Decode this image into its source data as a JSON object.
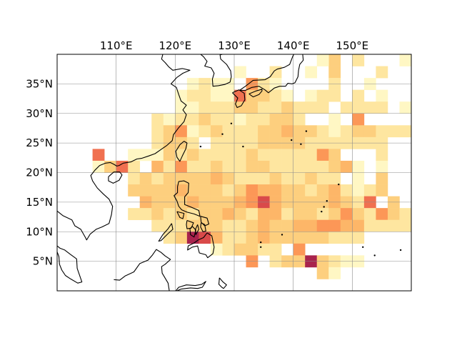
{
  "map": {
    "extent": {
      "lon_min": 100,
      "lon_max": 160,
      "lat_min": 0,
      "lat_max": 40
    },
    "gridline_color": "#8c8c8c",
    "coastline_color": "#000000",
    "colormap": [
      "#fff7c4",
      "#fee6a0",
      "#fdcf7e",
      "#fdb668",
      "#fc9757",
      "#f07050",
      "#d94a4a",
      "#a8234d"
    ],
    "lon_ticks": [
      {
        "value": 110,
        "label": "110°E"
      },
      {
        "value": 120,
        "label": "120°E"
      },
      {
        "value": 130,
        "label": "130°E"
      },
      {
        "value": 140,
        "label": "140°E"
      },
      {
        "value": 150,
        "label": "150°E"
      }
    ],
    "lat_ticks": [
      {
        "value": 35,
        "label": "35°N"
      },
      {
        "value": 30,
        "label": "30°N"
      },
      {
        "value": 25,
        "label": "25°N"
      },
      {
        "value": 20,
        "label": "20°N"
      },
      {
        "value": 15,
        "label": "15°N"
      },
      {
        "value": 10,
        "label": "10°N"
      },
      {
        "value": 5,
        "label": "5°N"
      }
    ],
    "cell_size_deg": 2,
    "cells": [
      [
        150,
        38,
        2
      ],
      [
        146,
        38,
        3
      ],
      [
        144,
        38,
        1
      ],
      [
        158,
        38,
        1
      ],
      [
        130,
        36,
        1
      ],
      [
        136,
        36,
        2
      ],
      [
        142,
        36,
        1
      ],
      [
        146,
        36,
        3
      ],
      [
        154,
        36,
        2
      ],
      [
        122,
        34,
        1
      ],
      [
        124,
        34,
        2
      ],
      [
        126,
        34,
        1
      ],
      [
        128,
        34,
        1
      ],
      [
        132,
        34,
        5
      ],
      [
        134,
        34,
        2
      ],
      [
        136,
        34,
        1
      ],
      [
        146,
        34,
        2
      ],
      [
        152,
        34,
        1
      ],
      [
        120,
        32,
        1
      ],
      [
        122,
        32,
        2
      ],
      [
        124,
        32,
        2
      ],
      [
        126,
        32,
        1
      ],
      [
        128,
        32,
        1
      ],
      [
        130,
        32,
        6
      ],
      [
        132,
        32,
        3
      ],
      [
        134,
        32,
        3
      ],
      [
        136,
        32,
        2
      ],
      [
        138,
        32,
        1
      ],
      [
        142,
        32,
        1
      ],
      [
        144,
        32,
        2
      ],
      [
        146,
        32,
        2
      ],
      [
        150,
        32,
        2
      ],
      [
        154,
        32,
        1
      ],
      [
        120,
        30,
        1
      ],
      [
        122,
        30,
        1
      ],
      [
        124,
        30,
        2
      ],
      [
        126,
        30,
        2
      ],
      [
        128,
        30,
        2
      ],
      [
        130,
        30,
        3
      ],
      [
        132,
        30,
        3
      ],
      [
        134,
        30,
        2
      ],
      [
        136,
        30,
        2
      ],
      [
        138,
        30,
        3
      ],
      [
        140,
        30,
        2
      ],
      [
        142,
        30,
        2
      ],
      [
        144,
        30,
        2
      ],
      [
        148,
        30,
        2
      ],
      [
        150,
        30,
        2
      ],
      [
        152,
        30,
        2
      ],
      [
        154,
        30,
        2
      ],
      [
        158,
        30,
        1
      ],
      [
        116,
        28,
        2
      ],
      [
        118,
        28,
        1
      ],
      [
        120,
        28,
        2
      ],
      [
        122,
        28,
        2
      ],
      [
        124,
        28,
        3
      ],
      [
        126,
        28,
        2
      ],
      [
        128,
        28,
        2
      ],
      [
        130,
        28,
        1
      ],
      [
        132,
        28,
        2
      ],
      [
        134,
        28,
        2
      ],
      [
        136,
        28,
        3
      ],
      [
        138,
        28,
        3
      ],
      [
        140,
        28,
        2
      ],
      [
        146,
        28,
        1
      ],
      [
        150,
        28,
        5
      ],
      [
        116,
        26,
        2
      ],
      [
        118,
        26,
        3
      ],
      [
        120,
        26,
        5
      ],
      [
        122,
        26,
        1
      ],
      [
        124,
        26,
        2
      ],
      [
        126,
        26,
        3
      ],
      [
        128,
        26,
        2
      ],
      [
        130,
        26,
        2
      ],
      [
        132,
        26,
        2
      ],
      [
        134,
        26,
        3
      ],
      [
        136,
        26,
        3
      ],
      [
        138,
        26,
        4
      ],
      [
        140,
        26,
        3
      ],
      [
        142,
        26,
        3
      ],
      [
        144,
        26,
        2
      ],
      [
        146,
        26,
        1
      ],
      [
        148,
        26,
        2
      ],
      [
        150,
        26,
        3
      ],
      [
        152,
        26,
        3
      ],
      [
        154,
        26,
        2
      ],
      [
        156,
        26,
        2
      ],
      [
        158,
        26,
        2
      ],
      [
        116,
        24,
        2
      ],
      [
        118,
        24,
        3
      ],
      [
        120,
        24,
        3
      ],
      [
        122,
        24,
        2
      ],
      [
        126,
        24,
        2
      ],
      [
        128,
        24,
        2
      ],
      [
        130,
        24,
        2
      ],
      [
        132,
        24,
        2
      ],
      [
        134,
        24,
        3
      ],
      [
        136,
        24,
        3
      ],
      [
        138,
        24,
        3
      ],
      [
        140,
        24,
        3
      ],
      [
        142,
        24,
        2
      ],
      [
        144,
        24,
        2
      ],
      [
        146,
        24,
        2
      ],
      [
        148,
        24,
        2
      ],
      [
        150,
        24,
        2
      ],
      [
        152,
        24,
        2
      ],
      [
        154,
        24,
        2
      ],
      [
        106,
        22,
        6
      ],
      [
        112,
        22,
        1
      ],
      [
        114,
        22,
        1
      ],
      [
        116,
        22,
        1
      ],
      [
        118,
        22,
        3
      ],
      [
        120,
        22,
        2
      ],
      [
        122,
        22,
        3
      ],
      [
        124,
        22,
        2
      ],
      [
        126,
        22,
        2
      ],
      [
        128,
        22,
        2
      ],
      [
        130,
        22,
        2
      ],
      [
        132,
        22,
        3
      ],
      [
        134,
        22,
        2
      ],
      [
        136,
        22,
        2
      ],
      [
        138,
        22,
        2
      ],
      [
        140,
        22,
        2
      ],
      [
        142,
        22,
        2
      ],
      [
        144,
        22,
        5
      ],
      [
        146,
        22,
        3
      ],
      [
        154,
        22,
        2
      ],
      [
        106,
        20,
        1
      ],
      [
        108,
        20,
        3
      ],
      [
        110,
        20,
        6
      ],
      [
        112,
        20,
        2
      ],
      [
        116,
        20,
        4
      ],
      [
        118,
        20,
        2
      ],
      [
        120,
        20,
        5
      ],
      [
        122,
        20,
        2
      ],
      [
        124,
        20,
        2
      ],
      [
        126,
        20,
        3
      ],
      [
        128,
        20,
        2
      ],
      [
        130,
        20,
        2
      ],
      [
        132,
        20,
        3
      ],
      [
        134,
        20,
        3
      ],
      [
        136,
        20,
        2
      ],
      [
        138,
        20,
        2
      ],
      [
        140,
        20,
        2
      ],
      [
        142,
        20,
        2
      ],
      [
        144,
        20,
        2
      ],
      [
        146,
        20,
        3
      ],
      [
        148,
        20,
        4
      ],
      [
        150,
        20,
        1
      ],
      [
        154,
        20,
        1
      ],
      [
        112,
        18,
        2
      ],
      [
        114,
        18,
        3
      ],
      [
        116,
        18,
        2
      ],
      [
        118,
        18,
        3
      ],
      [
        120,
        18,
        3
      ],
      [
        122,
        18,
        3
      ],
      [
        124,
        18,
        3
      ],
      [
        126,
        18,
        4
      ],
      [
        128,
        18,
        3
      ],
      [
        130,
        18,
        2
      ],
      [
        132,
        18,
        2
      ],
      [
        134,
        18,
        2
      ],
      [
        136,
        18,
        3
      ],
      [
        138,
        18,
        2
      ],
      [
        140,
        18,
        2
      ],
      [
        142,
        18,
        3
      ],
      [
        144,
        18,
        2
      ],
      [
        146,
        18,
        2
      ],
      [
        150,
        18,
        1
      ],
      [
        154,
        18,
        3
      ],
      [
        112,
        16,
        3
      ],
      [
        114,
        16,
        3
      ],
      [
        116,
        16,
        3
      ],
      [
        118,
        16,
        3
      ],
      [
        120,
        16,
        4
      ],
      [
        122,
        16,
        3
      ],
      [
        124,
        16,
        3
      ],
      [
        126,
        16,
        3
      ],
      [
        128,
        16,
        2
      ],
      [
        130,
        16,
        3
      ],
      [
        132,
        16,
        5
      ],
      [
        134,
        16,
        4
      ],
      [
        136,
        16,
        4
      ],
      [
        138,
        16,
        3
      ],
      [
        140,
        16,
        3
      ],
      [
        142,
        16,
        2
      ],
      [
        144,
        16,
        3
      ],
      [
        146,
        16,
        4
      ],
      [
        148,
        16,
        2
      ],
      [
        150,
        16,
        1
      ],
      [
        152,
        16,
        2
      ],
      [
        154,
        16,
        3
      ],
      [
        114,
        14,
        4
      ],
      [
        116,
        14,
        3
      ],
      [
        118,
        14,
        3
      ],
      [
        120,
        14,
        3
      ],
      [
        122,
        14,
        4
      ],
      [
        124,
        14,
        3
      ],
      [
        126,
        14,
        3
      ],
      [
        128,
        14,
        3
      ],
      [
        130,
        14,
        4
      ],
      [
        132,
        14,
        5
      ],
      [
        134,
        14,
        7
      ],
      [
        136,
        14,
        4
      ],
      [
        138,
        14,
        3
      ],
      [
        140,
        14,
        3
      ],
      [
        142,
        14,
        3
      ],
      [
        144,
        14,
        3
      ],
      [
        146,
        14,
        4
      ],
      [
        148,
        14,
        3
      ],
      [
        150,
        14,
        2
      ],
      [
        152,
        14,
        6
      ],
      [
        156,
        14,
        3
      ],
      [
        112,
        12,
        2
      ],
      [
        114,
        12,
        2
      ],
      [
        116,
        12,
        3
      ],
      [
        118,
        12,
        2
      ],
      [
        120,
        12,
        3
      ],
      [
        122,
        12,
        2
      ],
      [
        124,
        12,
        3
      ],
      [
        126,
        12,
        3
      ],
      [
        128,
        12,
        4
      ],
      [
        130,
        12,
        3
      ],
      [
        132,
        12,
        2
      ],
      [
        134,
        12,
        4
      ],
      [
        136,
        12,
        4
      ],
      [
        138,
        12,
        2
      ],
      [
        140,
        12,
        3
      ],
      [
        142,
        12,
        3
      ],
      [
        144,
        12,
        2
      ],
      [
        146,
        12,
        3
      ],
      [
        148,
        12,
        5
      ],
      [
        150,
        12,
        3
      ],
      [
        152,
        12,
        2
      ],
      [
        154,
        12,
        5
      ],
      [
        156,
        12,
        3
      ],
      [
        158,
        12,
        2
      ],
      [
        116,
        10,
        2
      ],
      [
        118,
        10,
        2
      ],
      [
        120,
        10,
        2
      ],
      [
        122,
        10,
        3
      ],
      [
        124,
        10,
        3
      ],
      [
        126,
        10,
        3
      ],
      [
        128,
        10,
        2
      ],
      [
        130,
        10,
        2
      ],
      [
        132,
        10,
        3
      ],
      [
        134,
        10,
        4
      ],
      [
        136,
        10,
        3
      ],
      [
        138,
        10,
        3
      ],
      [
        140,
        10,
        4
      ],
      [
        142,
        10,
        4
      ],
      [
        144,
        10,
        5
      ],
      [
        146,
        10,
        5
      ],
      [
        148,
        10,
        4
      ],
      [
        150,
        10,
        4
      ],
      [
        152,
        10,
        2
      ],
      [
        154,
        10,
        2
      ],
      [
        156,
        10,
        2
      ],
      [
        158,
        10,
        2
      ],
      [
        118,
        8,
        2
      ],
      [
        120,
        8,
        3
      ],
      [
        122,
        8,
        8
      ],
      [
        124,
        8,
        7
      ],
      [
        126,
        8,
        4
      ],
      [
        128,
        8,
        2
      ],
      [
        130,
        8,
        2
      ],
      [
        132,
        8,
        3
      ],
      [
        134,
        8,
        4
      ],
      [
        136,
        8,
        3
      ],
      [
        138,
        8,
        3
      ],
      [
        140,
        8,
        3
      ],
      [
        142,
        8,
        3
      ],
      [
        144,
        8,
        3
      ],
      [
        146,
        8,
        2
      ],
      [
        148,
        8,
        2
      ],
      [
        150,
        8,
        2
      ],
      [
        126,
        6,
        1
      ],
      [
        128,
        6,
        2
      ],
      [
        130,
        6,
        3
      ],
      [
        132,
        6,
        3
      ],
      [
        134,
        6,
        2
      ],
      [
        136,
        6,
        2
      ],
      [
        140,
        6,
        5
      ],
      [
        132,
        4,
        5
      ],
      [
        136,
        4,
        2
      ],
      [
        138,
        4,
        3
      ],
      [
        140,
        4,
        3
      ],
      [
        142,
        4,
        8
      ],
      [
        144,
        4,
        3
      ],
      [
        146,
        4,
        2
      ],
      [
        148,
        4,
        1
      ],
      [
        150,
        4,
        1
      ],
      [
        144,
        2,
        3
      ],
      [
        146,
        2,
        1
      ]
    ]
  }
}
